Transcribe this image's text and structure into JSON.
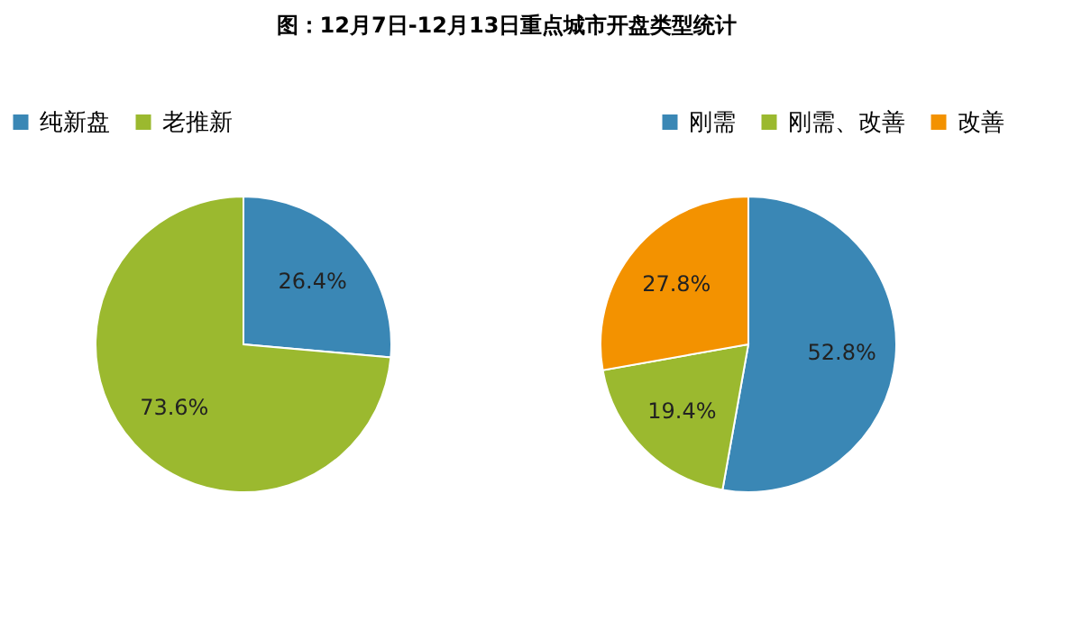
{
  "chart_data": [
    {
      "type": "pie",
      "title": "图：12月7日-12月13日重点城市开盘类型统计",
      "categories": [
        "纯新盘",
        "老推新"
      ],
      "values": [
        26.4,
        73.6
      ],
      "colors": [
        "#3a87b5",
        "#9bb92f"
      ],
      "value_labels": [
        "26.4%",
        "73.6%"
      ],
      "legend": "top left"
    },
    {
      "type": "pie",
      "categories": [
        "刚需",
        "刚需、改善",
        "改善"
      ],
      "values": [
        52.8,
        19.4,
        27.8
      ],
      "colors": [
        "#3a87b5",
        "#9bb92f",
        "#f39200"
      ],
      "value_labels": [
        "52.8%",
        "19.4%",
        "27.8%"
      ],
      "legend": "top right"
    }
  ]
}
